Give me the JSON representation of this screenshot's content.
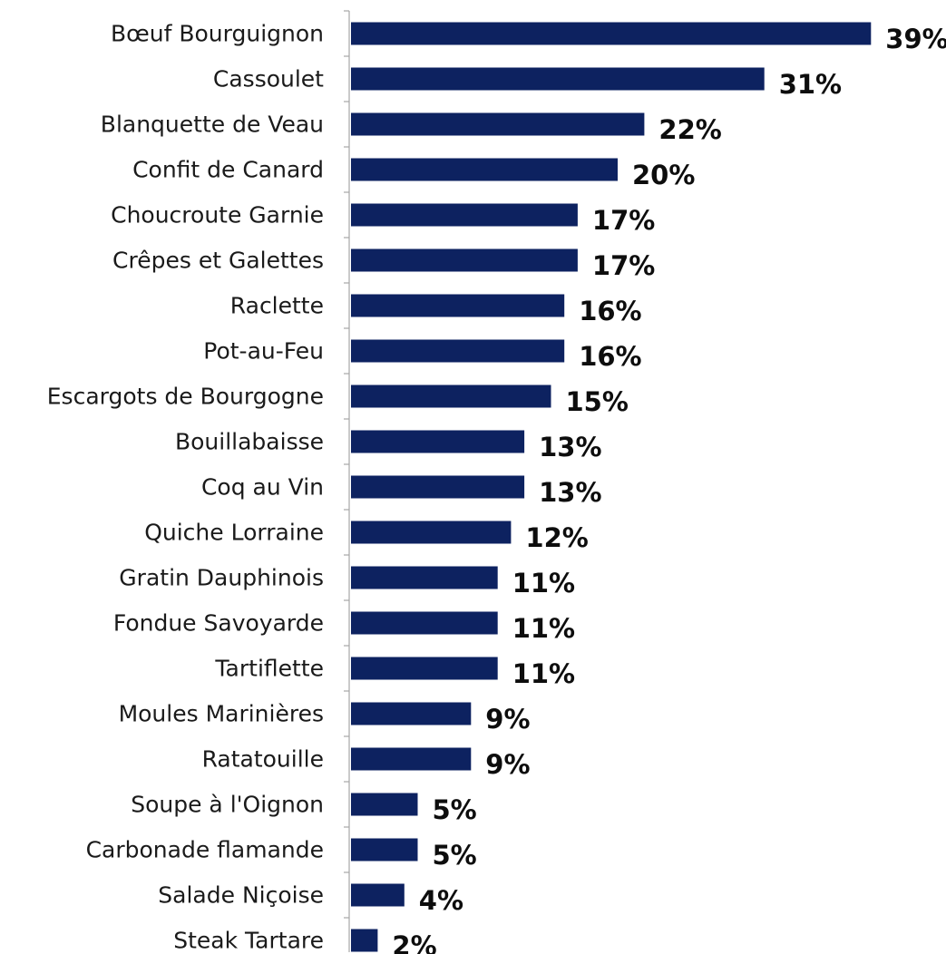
{
  "chart_data": {
    "type": "bar",
    "orientation": "horizontal",
    "title": "",
    "xlabel": "",
    "ylabel": "",
    "xlim": [
      0,
      40
    ],
    "grid": false,
    "legend": "none",
    "bar_color": "#0d2260",
    "axis_color": "#a6a6a6",
    "label_color": "#1a1a1a",
    "value_label_color": "#0d0d0d",
    "categories": [
      "Bœuf Bourguignon",
      "Cassoulet",
      "Blanquette de Veau",
      "Confit de Canard",
      "Choucroute Garnie",
      "Crêpes et Galettes",
      "Raclette",
      "Pot-au-Feu",
      "Escargots de Bourgogne",
      "Bouillabaisse",
      "Coq au Vin",
      "Quiche Lorraine",
      "Gratin Dauphinois",
      "Fondue Savoyarde",
      "Tartiflette",
      "Moules Marinières",
      "Ratatouille",
      "Soupe à l'Oignon",
      "Carbonade flamande",
      "Salade Niçoise",
      "Steak Tartare"
    ],
    "values": [
      39,
      31,
      22,
      20,
      17,
      17,
      16,
      16,
      15,
      13,
      13,
      12,
      11,
      11,
      11,
      9,
      9,
      5,
      5,
      4,
      2
    ],
    "value_labels": [
      "39%",
      "31%",
      "22%",
      "20%",
      "17%",
      "17%",
      "16%",
      "16%",
      "15%",
      "13%",
      "13%",
      "12%",
      "11%",
      "11%",
      "11%",
      "9%",
      "9%",
      "5%",
      "5%",
      "4%",
      "2%"
    ]
  }
}
